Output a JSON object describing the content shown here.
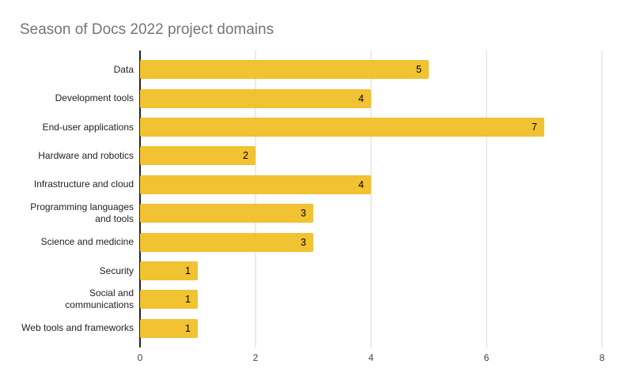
{
  "title": "Season of Docs 2022 project domains",
  "colors": {
    "background": "#ffffff",
    "bar": "#f1c232",
    "title_text": "#757575",
    "axis_line": "#222222",
    "gridline": "#dadada",
    "category_label": "#222222",
    "value_label": "#000000",
    "tick_label": "#444444"
  },
  "chart_data": {
    "type": "bar",
    "orientation": "horizontal",
    "title": "Season of Docs 2022 project domains",
    "categories": [
      "Data",
      "Development tools",
      "End-user applications",
      "Hardware and robotics",
      "Infrastructure and cloud",
      "Programming languages and tools",
      "Science and medicine",
      "Security",
      "Social and communications",
      "Web tools and frameworks"
    ],
    "category_display": [
      "Data",
      "Development tools",
      "End-user applications",
      "Hardware and robotics",
      "Infrastructure and cloud",
      "Programming languages\nand tools",
      "Science and medicine",
      "Security",
      "Social and\ncommunications",
      "Web tools and frameworks"
    ],
    "values": [
      5,
      4,
      7,
      2,
      4,
      3,
      3,
      1,
      1,
      1
    ],
    "xlabel": "",
    "ylabel": "",
    "xlim": [
      0,
      8
    ],
    "x_ticks": [
      0,
      2,
      4,
      6,
      8
    ],
    "grid": true,
    "legend": "none",
    "value_labels_position": "inside-end"
  }
}
